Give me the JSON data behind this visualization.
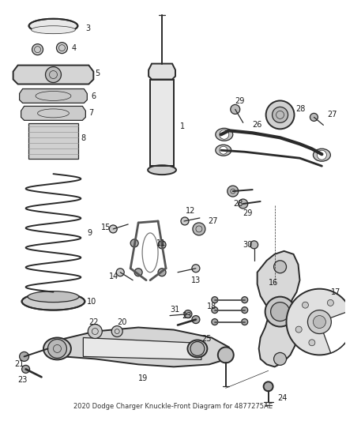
{
  "title": "2020 Dodge Charger Knuckle-Front Diagram for 4877275AE",
  "bg": "#ffffff",
  "lc": "#2a2a2a",
  "lc_light": "#888888",
  "lc_fill": "#d8d8d8",
  "lw_thin": 0.5,
  "lw_mid": 0.9,
  "lw_thick": 1.4,
  "lw_bold": 2.0,
  "label_fs": 7.0,
  "label_color": "#1a1a1a",
  "figsize": [
    4.38,
    5.33
  ],
  "dpi": 100
}
